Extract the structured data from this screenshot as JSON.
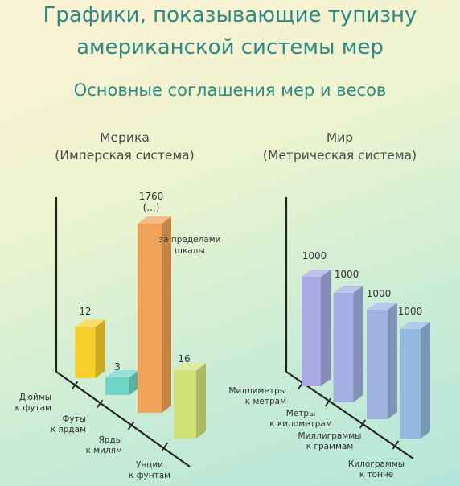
{
  "header": {
    "title_line1": "Графики, показывающие тупизну",
    "title_line2": "американской системы мер",
    "subtitle": "Основные соглашения мер и весов"
  },
  "colors": {
    "title": "#2f8a85",
    "yellow": "#f6cf2c",
    "teal": "#6fd6c6",
    "orange": "#f0a257",
    "lime": "#cfe37a",
    "purple": "#a7a9e2",
    "lavender": "#a3b3e2",
    "blue": "#93b6df"
  },
  "chart_data": [
    {
      "type": "bar",
      "title_line1": "Мерика",
      "title_line2": "(Имперская система)",
      "categories": [
        [
          "Дюймы",
          "к футам"
        ],
        [
          "Футы",
          "к ярдам"
        ],
        [
          "Ярды",
          "к милям"
        ],
        [
          "Унции",
          "к фунтам"
        ]
      ],
      "values": [
        12,
        3,
        1760,
        16
      ],
      "value_labels": [
        [
          "12"
        ],
        [
          "3"
        ],
        [
          "1760",
          "(...)"
        ],
        [
          "16"
        ]
      ],
      "colors": [
        "#f6cf2c",
        "#6fd6c6",
        "#f0a257",
        "#cfe37a"
      ],
      "annotation": [
        "за пределами",
        "шкалы"
      ]
    },
    {
      "type": "bar",
      "title_line1": "Мир",
      "title_line2": "(Метрическая система)",
      "categories": [
        [
          "Миллиметры",
          "к метрам"
        ],
        [
          "Метры",
          "к километрам"
        ],
        [
          "Миллиграммы",
          "к граммам"
        ],
        [
          "Килограммы",
          "к тонне"
        ]
      ],
      "values": [
        1000,
        1000,
        1000,
        1000
      ],
      "value_labels": [
        [
          "1000"
        ],
        [
          "1000"
        ],
        [
          "1000"
        ],
        [
          "1000"
        ]
      ],
      "colors": [
        "#a7a9e2",
        "#a3afe2",
        "#9fb3e0",
        "#93b8df"
      ]
    }
  ]
}
